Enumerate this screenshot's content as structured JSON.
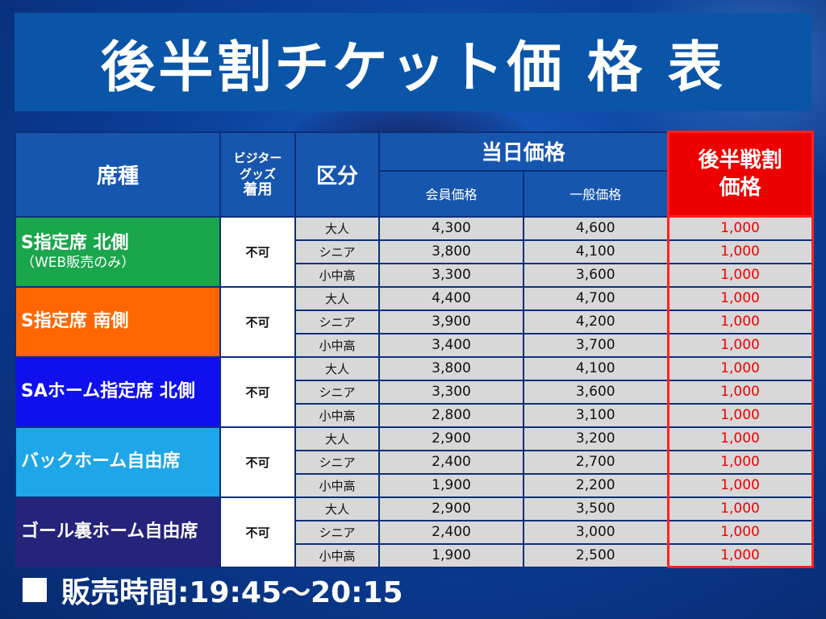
{
  "title": "後半割チケット価 格 表",
  "headers": {
    "seat": "席種",
    "goods": [
      "ビジター",
      "グッズ",
      "着用"
    ],
    "kubun": "区分",
    "today": "当日価格",
    "member": "会員価格",
    "general": "一般価格",
    "late": [
      "後半戦割",
      "価格"
    ]
  },
  "sections": [
    {
      "seat": "S指定席 北側",
      "note": "（WEB販売のみ）",
      "goods": "不可",
      "color": "#1aa64a",
      "rows": [
        {
          "kubun": "大人",
          "member": "4,300",
          "general": "4,600",
          "late": "1,000"
        },
        {
          "kubun": "シニア",
          "member": "3,800",
          "general": "4,100",
          "late": "1,000"
        },
        {
          "kubun": "小中高",
          "member": "3,300",
          "general": "3,600",
          "late": "1,000"
        }
      ]
    },
    {
      "seat": "S指定席 南側",
      "note": "",
      "goods": "不可",
      "color": "#ff6600",
      "rows": [
        {
          "kubun": "大人",
          "member": "4,400",
          "general": "4,700",
          "late": "1,000"
        },
        {
          "kubun": "シニア",
          "member": "3,900",
          "general": "4,200",
          "late": "1,000"
        },
        {
          "kubun": "小中高",
          "member": "3,400",
          "general": "3,700",
          "late": "1,000"
        }
      ]
    },
    {
      "seat": "SAホーム指定席 北側",
      "note": "",
      "goods": "不可",
      "color": "#1010ee",
      "rows": [
        {
          "kubun": "大人",
          "member": "3,800",
          "general": "4,100",
          "late": "1,000"
        },
        {
          "kubun": "シニア",
          "member": "3,300",
          "general": "3,600",
          "late": "1,000"
        },
        {
          "kubun": "小中高",
          "member": "2,800",
          "general": "3,100",
          "late": "1,000"
        }
      ]
    },
    {
      "seat": "バックホーム自由席",
      "note": "",
      "goods": "不可",
      "color": "#1ea6e8",
      "rows": [
        {
          "kubun": "大人",
          "member": "2,900",
          "general": "3,200",
          "late": "1,000"
        },
        {
          "kubun": "シニア",
          "member": "2,400",
          "general": "2,700",
          "late": "1,000"
        },
        {
          "kubun": "小中高",
          "member": "1,900",
          "general": "2,200",
          "late": "1,000"
        }
      ]
    },
    {
      "seat": "ゴール裏ホーム自由席",
      "note": "",
      "goods": "不可",
      "color": "#25237a",
      "rows": [
        {
          "kubun": "大人",
          "member": "2,900",
          "general": "3,500",
          "late": "1,000"
        },
        {
          "kubun": "シニア",
          "member": "2,400",
          "general": "3,000",
          "late": "1,000"
        },
        {
          "kubun": "小中高",
          "member": "1,900",
          "general": "2,500",
          "late": "1,000"
        }
      ]
    }
  ],
  "footer": "販売時間:19:45～20:15",
  "colors": {
    "accent_red": "#ee0000",
    "header_blue": "#1756ae"
  }
}
